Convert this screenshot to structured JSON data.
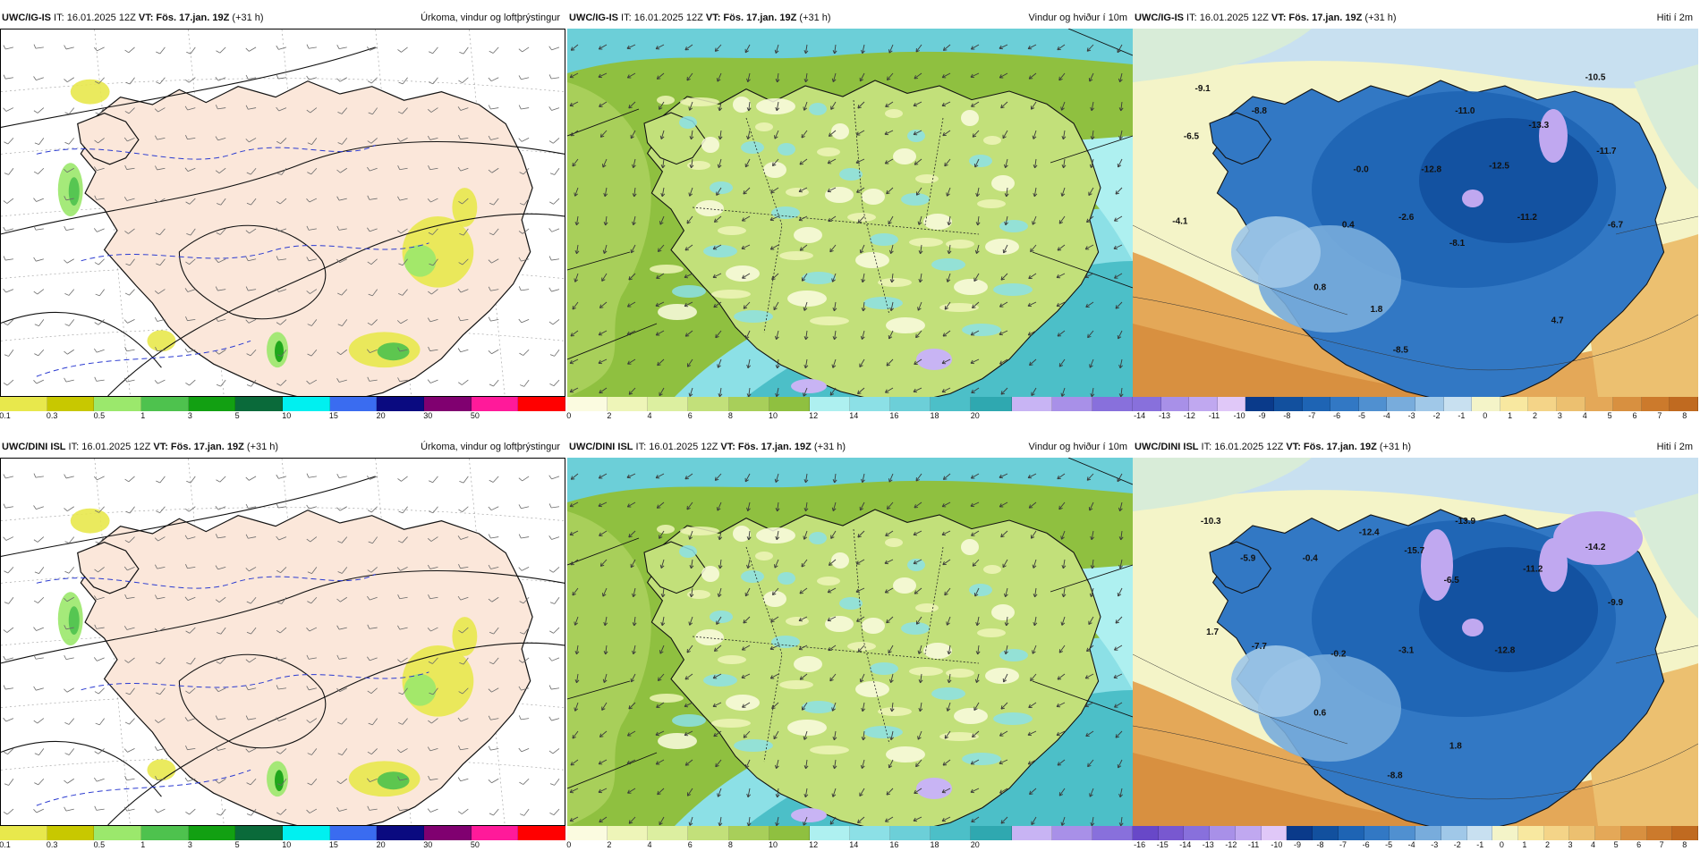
{
  "panels": [
    {
      "id": "p1",
      "model_label": "UWC/IG-IS",
      "it_label": " IT: 16.01.2025 12Z ",
      "vt_label": "VT: Fös. 17.jan. 19Z",
      "lead": " (+31 h)",
      "title": "Úrkoma, vindur og loftþrýstingur",
      "type": "precip",
      "colorbar": {
        "colors": [
          "#e8e84c",
          "#c8c800",
          "#9be86c",
          "#4ec24e",
          "#12a012",
          "#0a6a3a",
          "#00f0f0",
          "#3a6cf0",
          "#0a0a80",
          "#800070",
          "#ff1a9a",
          "#ff0000"
        ],
        "labels": [
          "0.1",
          "0.3",
          "0.5",
          "1",
          "3",
          "5",
          "10",
          "15",
          "20",
          "30",
          "50"
        ]
      }
    },
    {
      "id": "p2",
      "model_label": "UWC/IG-IS",
      "it_label": " IT: 16.01.2025 12Z ",
      "vt_label": "VT: Fös. 17.jan. 19Z",
      "lead": " (+31 h)",
      "title": "Vindur og hviður í 10m",
      "type": "wind",
      "colorbar": {
        "colors": [
          "#fbfbe0",
          "#eef5b8",
          "#dcefa0",
          "#c2e07a",
          "#a8cf5a",
          "#8fc040",
          "#aef0f0",
          "#8ce0e6",
          "#6ccfd8",
          "#4cbfc8",
          "#2fa8b0",
          "#c8b4f4",
          "#a890e8",
          "#8870dc"
        ],
        "labels": [
          "0",
          "2",
          "4",
          "6",
          "8",
          "10",
          "12",
          "14",
          "16",
          "18",
          "20"
        ]
      }
    },
    {
      "id": "p3",
      "model_label": "UWC/IG-IS",
      "it_label": " IT: 16.01.2025 12Z ",
      "vt_label": "VT: Fös. 17.jan. 19Z",
      "lead": " (+31 h)",
      "title": "Hiti í 2m",
      "type": "temp",
      "colorbar": {
        "colors": [
          "#8870dc",
          "#a890e8",
          "#c0a8f0",
          "#e0c8f8",
          "#0a3a8a",
          "#12509e",
          "#1e64b4",
          "#3278c4",
          "#5090d0",
          "#78acdc",
          "#a0c8e8",
          "#c8e0f0",
          "#f4f4c8",
          "#f8e8a0",
          "#f4d488",
          "#ecc070",
          "#e4a858",
          "#d89040",
          "#cc7a2c",
          "#c06a20"
        ],
        "labels": [
          "-14",
          "-13",
          "-12",
          "-11",
          "-10",
          "-9",
          "-8",
          "-7",
          "-6",
          "-5",
          "-4",
          "-3",
          "-2",
          "-1",
          "0",
          "1",
          "2",
          "3",
          "4",
          "5",
          "6",
          "7",
          "8"
        ]
      },
      "values": [
        {
          "t": "-9.1",
          "x": "0.11",
          "y": "0.17"
        },
        {
          "t": "-8.8",
          "x": "0.21",
          "y": "0.23"
        },
        {
          "t": "-6.5",
          "x": "0.09",
          "y": "0.30"
        },
        {
          "t": "-0.0",
          "x": "0.39",
          "y": "0.39"
        },
        {
          "t": "-12.8",
          "x": "0.51",
          "y": "0.39"
        },
        {
          "t": "-12.5",
          "x": "0.63",
          "y": "0.38"
        },
        {
          "t": "-11.0",
          "x": "0.57",
          "y": "0.23"
        },
        {
          "t": "-13.3",
          "x": "0.70",
          "y": "0.27"
        },
        {
          "t": "-10.5",
          "x": "0.80",
          "y": "0.14"
        },
        {
          "t": "-11.7",
          "x": "0.82",
          "y": "0.34"
        },
        {
          "t": "-4.1",
          "x": "0.07",
          "y": "0.53"
        },
        {
          "t": "0.4",
          "x": "0.37",
          "y": "0.54"
        },
        {
          "t": "-2.6",
          "x": "0.47",
          "y": "0.52"
        },
        {
          "t": "-11.2",
          "x": "0.68",
          "y": "0.52"
        },
        {
          "t": "-8.1",
          "x": "0.56",
          "y": "0.59"
        },
        {
          "t": "-6.7",
          "x": "0.84",
          "y": "0.54"
        },
        {
          "t": "0.8",
          "x": "0.32",
          "y": "0.71"
        },
        {
          "t": "1.8",
          "x": "0.42",
          "y": "0.77"
        },
        {
          "t": "4.7",
          "x": "0.74",
          "y": "0.80"
        },
        {
          "t": "-8.5",
          "x": "0.46",
          "y": "0.88"
        }
      ]
    },
    {
      "id": "p4",
      "model_label": "UWC/DINI ISL",
      "it_label": " IT: 16.01.2025 12Z ",
      "vt_label": "VT: Fös. 17.jan. 19Z",
      "lead": " (+31 h)",
      "title": "Úrkoma, vindur og loftþrýstingur",
      "type": "precip",
      "colorbar": {
        "colors": [
          "#e8e84c",
          "#c8c800",
          "#9be86c",
          "#4ec24e",
          "#12a012",
          "#0a6a3a",
          "#00f0f0",
          "#3a6cf0",
          "#0a0a80",
          "#800070",
          "#ff1a9a",
          "#ff0000"
        ],
        "labels": [
          "0.1",
          "0.3",
          "0.5",
          "1",
          "3",
          "5",
          "10",
          "15",
          "20",
          "30",
          "50"
        ]
      }
    },
    {
      "id": "p5",
      "model_label": "UWC/DINI ISL",
      "it_label": " IT: 16.01.2025 12Z ",
      "vt_label": "VT: Fös. 17.jan. 19Z",
      "lead": " (+31 h)",
      "title": "Vindur og hviður í 10m",
      "type": "wind",
      "colorbar": {
        "colors": [
          "#fbfbe0",
          "#eef5b8",
          "#dcefa0",
          "#c2e07a",
          "#a8cf5a",
          "#8fc040",
          "#aef0f0",
          "#8ce0e6",
          "#6ccfd8",
          "#4cbfc8",
          "#2fa8b0",
          "#c8b4f4",
          "#a890e8",
          "#8870dc"
        ],
        "labels": [
          "0",
          "2",
          "4",
          "6",
          "8",
          "10",
          "12",
          "14",
          "16",
          "18",
          "20"
        ]
      }
    },
    {
      "id": "p6",
      "model_label": "UWC/DINI ISL",
      "it_label": " IT: 16.01.2025 12Z ",
      "vt_label": "VT: Fös. 17.jan. 19Z",
      "lead": " (+31 h)",
      "title": "Hiti í 2m",
      "type": "temp",
      "colorbar": {
        "colors": [
          "#6848c8",
          "#7858d0",
          "#8870dc",
          "#a890e8",
          "#c0a8f0",
          "#e0c8f8",
          "#0a3a8a",
          "#12509e",
          "#1e64b4",
          "#3278c4",
          "#5090d0",
          "#78acdc",
          "#a0c8e8",
          "#c8e0f0",
          "#f4f4c8",
          "#f8e8a0",
          "#f4d488",
          "#ecc070",
          "#e4a858",
          "#d89040",
          "#cc7a2c",
          "#c06a20"
        ],
        "labels": [
          "-16",
          "-15",
          "-14",
          "-13",
          "-12",
          "-11",
          "-10",
          "-9",
          "-8",
          "-7",
          "-6",
          "-5",
          "-4",
          "-3",
          "-2",
          "-1",
          "0",
          "1",
          "2",
          "3",
          "4",
          "5",
          "6",
          "7",
          "8"
        ]
      },
      "values": [
        {
          "t": "-10.3",
          "x": "0.12",
          "y": "0.18"
        },
        {
          "t": "-5.9",
          "x": "0.19",
          "y": "0.28"
        },
        {
          "t": "-0.4",
          "x": "0.30",
          "y": "0.28"
        },
        {
          "t": "-12.4",
          "x": "0.40",
          "y": "0.21"
        },
        {
          "t": "-15.7",
          "x": "0.48",
          "y": "0.26"
        },
        {
          "t": "-13.9",
          "x": "0.57",
          "y": "0.18"
        },
        {
          "t": "-6.5",
          "x": "0.55",
          "y": "0.34"
        },
        {
          "t": "-11.2",
          "x": "0.69",
          "y": "0.31"
        },
        {
          "t": "-14.2",
          "x": "0.80",
          "y": "0.25"
        },
        {
          "t": "-9.9",
          "x": "0.84",
          "y": "0.40"
        },
        {
          "t": "1.7",
          "x": "0.13",
          "y": "0.48"
        },
        {
          "t": "-7.7",
          "x": "0.21",
          "y": "0.52"
        },
        {
          "t": "-0.2",
          "x": "0.35",
          "y": "0.54"
        },
        {
          "t": "-3.1",
          "x": "0.47",
          "y": "0.53"
        },
        {
          "t": "-12.8",
          "x": "0.64",
          "y": "0.53"
        },
        {
          "t": "0.6",
          "x": "0.32",
          "y": "0.70"
        },
        {
          "t": "1.8",
          "x": "0.56",
          "y": "0.79"
        },
        {
          "t": "-8.8",
          "x": "0.45",
          "y": "0.87"
        }
      ]
    }
  ]
}
